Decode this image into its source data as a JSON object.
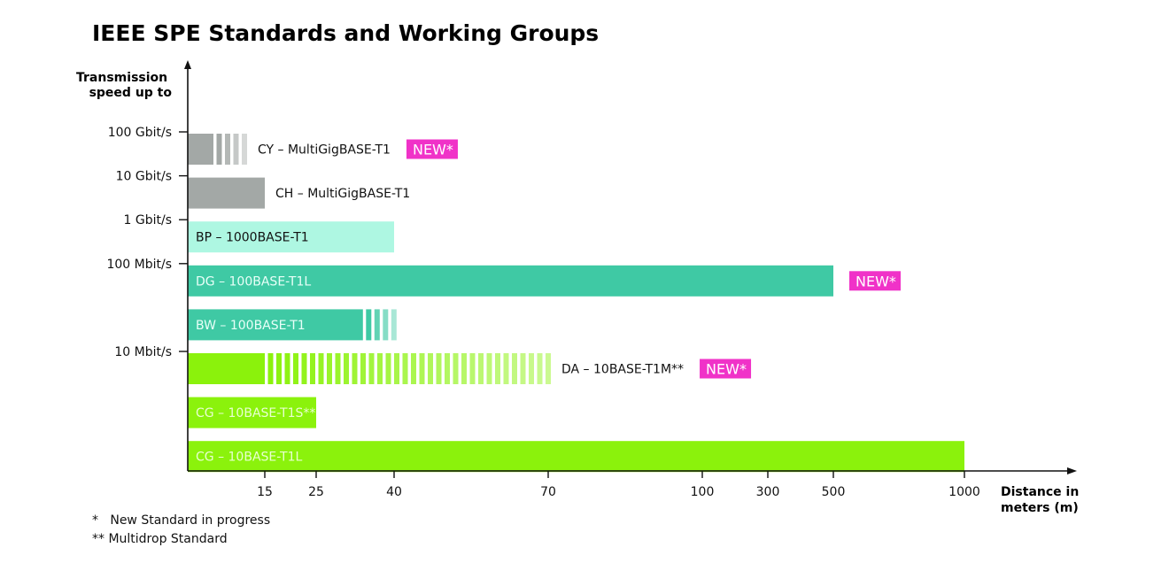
{
  "chart_data": {
    "type": "bar",
    "orientation": "horizontal",
    "title": "IEEE SPE Standards and Working Groups",
    "ylabel": [
      "Transmission",
      "speed up to"
    ],
    "xlabel": [
      "Distance in",
      "meters (m)"
    ],
    "y_ticks": [
      {
        "label": "100 Gbit/s",
        "row": 0
      },
      {
        "label": "10 Gbit/s",
        "row": 1
      },
      {
        "label": "1 Gbit/s",
        "row": 2
      },
      {
        "label": "100 Mbit/s",
        "row": 3
      },
      {
        "label": "10 Mbit/s",
        "row": 5
      }
    ],
    "x_ticks": [
      15,
      25,
      40,
      70,
      100,
      300,
      500,
      1000
    ],
    "series": [
      {
        "label": "CY – MultiGigBASE-T1",
        "solid_to": 5,
        "dashed_to": 11,
        "color": "#a3a8a6",
        "label_position": "outside",
        "label_color": "#111111",
        "new": true
      },
      {
        "label": "CH – MultiGigBASE-T1",
        "solid_to": 15,
        "dashed_to": null,
        "color": "#a3a8a6",
        "label_position": "outside",
        "label_color": "#111111",
        "new": false
      },
      {
        "label": "BP – 1000BASE-T1",
        "solid_to": 40,
        "dashed_to": null,
        "color": "#aef7e2",
        "label_position": "inside",
        "label_color": "#111111",
        "new": false
      },
      {
        "label": "DG – 100BASE-T1L",
        "solid_to": 500,
        "dashed_to": null,
        "color": "#3fc9a4",
        "label_position": "inside",
        "label_color": "#e8fff8",
        "new": true
      },
      {
        "label": "BW – 100BASE-T1",
        "solid_to": 34,
        "dashed_to": 40,
        "color": "#3fc9a4",
        "label_position": "inside",
        "label_color": "#e8fff8",
        "new": false
      },
      {
        "label": "DA – 10BASE-T1M**",
        "solid_to": 15,
        "dashed_to": 70,
        "color": "#8bf20c",
        "label_position": "outside",
        "label_color": "#111111",
        "new": true
      },
      {
        "label": "CG – 10BASE-T1S**",
        "solid_to": 25,
        "dashed_to": null,
        "color": "#8bf20c",
        "label_position": "inside",
        "label_color": "#e8ffd0",
        "new": false
      },
      {
        "label": "CG – 10BASE-T1L",
        "solid_to": 1000,
        "dashed_to": null,
        "color": "#8bf20c",
        "label_position": "inside",
        "label_color": "#e8ffd0",
        "new": false
      }
    ],
    "new_badge": {
      "text": "NEW*",
      "color": "#f032c8"
    },
    "footnotes": [
      "*   New Standard in progress",
      "** Multidrop Standard"
    ]
  }
}
